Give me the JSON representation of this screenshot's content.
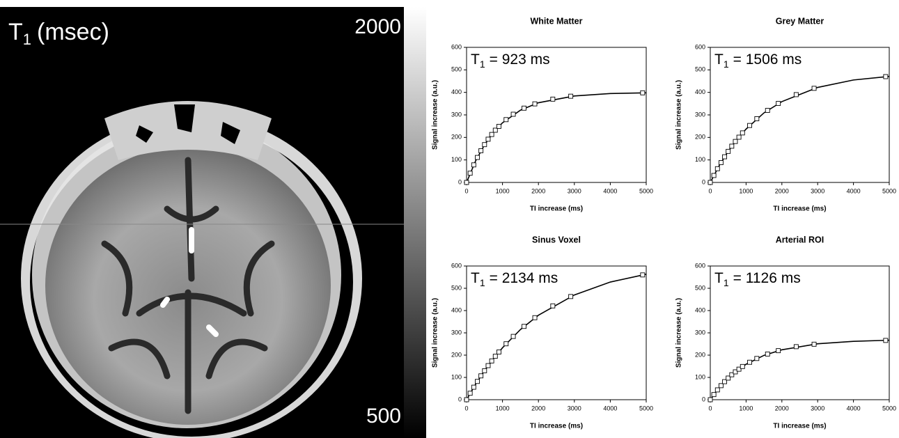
{
  "image_panel": {
    "title_main": "T",
    "title_sub": "1",
    "title_rest": "(msec)",
    "colorbar": {
      "lim": [
        500,
        2000
      ],
      "ticks": [
        2000,
        500
      ]
    }
  },
  "chart_data": [
    {
      "type": "scatter",
      "title": "White Matter",
      "x_label": "TI increase (ms)",
      "y_label": "Signal increase (a.u.)",
      "annotation_main": "T",
      "annotation_sub": "1",
      "annotation_rest": "= 923 ms",
      "color": "#000000",
      "x": [
        0,
        100,
        200,
        300,
        400,
        500,
        600,
        700,
        800,
        900,
        1100,
        1300,
        1600,
        1900,
        2400,
        2900,
        4900
      ],
      "values": [
        0,
        41,
        78,
        111,
        141,
        168,
        192,
        213,
        232,
        249,
        279,
        303,
        330,
        349,
        370,
        383,
        398
      ],
      "fit_x": [
        0,
        250,
        500,
        750,
        1000,
        1500,
        2000,
        3000,
        4000,
        5000
      ],
      "fit_values": [
        0,
        95,
        167,
        223,
        265,
        321,
        354,
        384,
        395,
        398
      ],
      "xlim": [
        0,
        5000
      ],
      "xticks": [
        0,
        1000,
        2000,
        3000,
        4000,
        5000
      ],
      "ylim": [
        0,
        600
      ],
      "yticks": [
        0,
        100,
        200,
        300,
        400,
        500,
        600
      ]
    },
    {
      "type": "scatter",
      "title": "Grey Matter",
      "x_label": "TI increase (ms)",
      "y_label": "Signal increase (a.u.)",
      "annotation_main": "T",
      "annotation_sub": "1",
      "annotation_rest": "= 1506 ms",
      "color": "#000000",
      "x": [
        0,
        100,
        200,
        300,
        400,
        500,
        600,
        700,
        800,
        900,
        1100,
        1300,
        1600,
        1900,
        2400,
        2900,
        4900
      ],
      "values": [
        0,
        31,
        61,
        88,
        114,
        138,
        161,
        182,
        201,
        220,
        253,
        283,
        320,
        351,
        390,
        418,
        470
      ],
      "fit_x": [
        0,
        250,
        500,
        750,
        1000,
        1500,
        2000,
        3000,
        4000,
        5000
      ],
      "fit_values": [
        0,
        75,
        138,
        192,
        237,
        309,
        359,
        422,
        455,
        471
      ],
      "xlim": [
        0,
        5000
      ],
      "xticks": [
        0,
        1000,
        2000,
        3000,
        4000,
        5000
      ],
      "ylim": [
        0,
        600
      ],
      "yticks": [
        0,
        100,
        200,
        300,
        400,
        500,
        600
      ]
    },
    {
      "type": "scatter",
      "title": "Sinus Voxel",
      "x_label": "TI increase (ms)",
      "y_label": "Signal increase (a.u.)",
      "annotation_main": "T",
      "annotation_sub": "1",
      "annotation_rest": "= 2134 ms",
      "color": "#000000",
      "x": [
        0,
        100,
        200,
        300,
        400,
        500,
        600,
        700,
        800,
        900,
        1100,
        1300,
        1600,
        1900,
        2400,
        2900,
        4900
      ],
      "values": [
        0,
        29,
        56,
        82,
        107,
        130,
        153,
        174,
        195,
        214,
        251,
        284,
        329,
        368,
        421,
        463,
        560
      ],
      "fit_x": [
        0,
        250,
        500,
        750,
        1000,
        1500,
        2000,
        3000,
        4000,
        5000
      ],
      "fit_values": [
        0,
        69,
        130,
        184,
        233,
        315,
        379,
        470,
        528,
        563
      ],
      "xlim": [
        0,
        5000
      ],
      "xticks": [
        0,
        1000,
        2000,
        3000,
        4000,
        5000
      ],
      "ylim": [
        0,
        600
      ],
      "yticks": [
        0,
        100,
        200,
        300,
        400,
        500,
        600
      ]
    },
    {
      "type": "scatter",
      "title": "Arterial ROI",
      "x_label": "TI increase (ms)",
      "y_label": "Signal increase (a.u.)",
      "annotation_main": "T",
      "annotation_sub": "1",
      "annotation_rest": "= 1126 ms",
      "color": "#000000",
      "x": [
        0,
        100,
        200,
        300,
        400,
        500,
        600,
        700,
        800,
        900,
        1100,
        1300,
        1600,
        1900,
        2400,
        2900,
        4900
      ],
      "values": [
        0,
        23,
        44,
        63,
        81,
        97,
        112,
        125,
        137,
        149,
        168,
        185,
        205,
        220,
        238,
        249,
        266
      ],
      "fit_x": [
        0,
        250,
        500,
        750,
        1000,
        1500,
        2000,
        3000,
        4000,
        5000
      ],
      "fit_values": [
        0,
        54,
        97,
        131,
        159,
        199,
        224,
        251,
        262,
        267
      ],
      "xlim": [
        0,
        5000
      ],
      "xticks": [
        0,
        1000,
        2000,
        3000,
        4000,
        5000
      ],
      "ylim": [
        0,
        600
      ],
      "yticks": [
        0,
        100,
        200,
        300,
        400,
        500,
        600
      ]
    }
  ]
}
